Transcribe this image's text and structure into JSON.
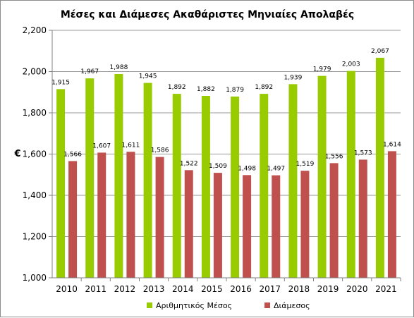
{
  "chart_data": {
    "type": "bar",
    "title": "Μέσες και Διάμεσες Ακαθάριστες Μηνιαίες Απολαβές",
    "xlabel": "",
    "ylabel": "€",
    "ylim": [
      1000,
      2200
    ],
    "yticks": [
      "1,000",
      "1,200",
      "1,400",
      "1,600",
      "1,800",
      "2,000",
      "2,200"
    ],
    "ytick_values": [
      1000,
      1200,
      1400,
      1600,
      1800,
      2000,
      2200
    ],
    "grid": true,
    "legend_position": "bottom",
    "categories": [
      "2010",
      "2011",
      "2012",
      "2013",
      "2014",
      "2015",
      "2016",
      "2017",
      "2018",
      "2019",
      "2020",
      "2021"
    ],
    "series": [
      {
        "name": "Αριθμητικός Μέσος",
        "color": "#99cc00",
        "values": [
          1915,
          1967,
          1988,
          1945,
          1892,
          1882,
          1879,
          1892,
          1939,
          1979,
          2003,
          2067
        ],
        "labels": [
          "1,915",
          "1,967",
          "1,988",
          "1,945",
          "1,892",
          "1,882",
          "1,879",
          "1,892",
          "1,939",
          "1,979",
          "2,003",
          "2,067"
        ]
      },
      {
        "name": "Διάμεσος",
        "color": "#c0504d",
        "values": [
          1566,
          1607,
          1611,
          1586,
          1522,
          1509,
          1498,
          1497,
          1519,
          1556,
          1573,
          1614
        ],
        "labels": [
          "1,566",
          "1,607",
          "1,611",
          "1,586",
          "1,522",
          "1,509",
          "1,498",
          "1,497",
          "1,519",
          "1,556",
          "1,573",
          "1,614"
        ]
      }
    ]
  }
}
